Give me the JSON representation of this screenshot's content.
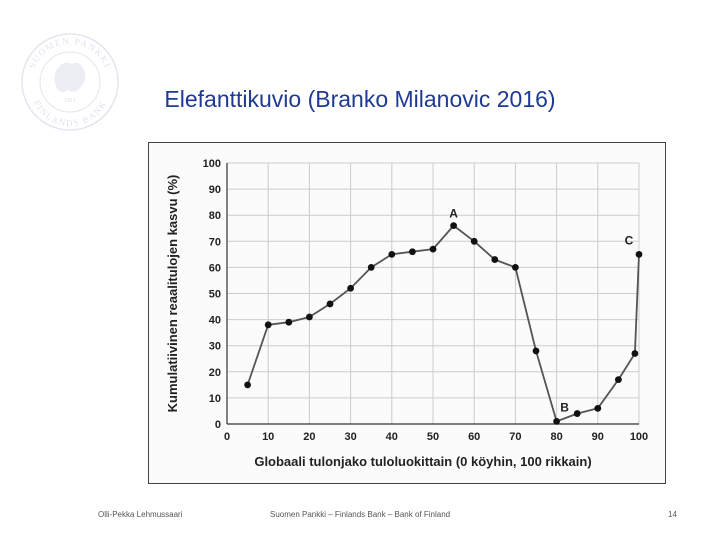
{
  "logo": {
    "icon": "suomen-pankki-seal-icon",
    "arc_top": "SUOMEN PANKKI",
    "arc_bottom": "FINLANDS BANK",
    "center_text": "1811"
  },
  "slide": {
    "title": "Elefanttikuvio (Branko Milanovic 2016)"
  },
  "footer": {
    "author": "Olli-Pekka Lehmussaari",
    "organization": "Suomen Pankki – Finlands Bank – Bank of Finland",
    "page": "14"
  },
  "chart_data": {
    "type": "line",
    "xlabel": "Globaali tulonjako tuloluokittain (0 köyhin, 100 rikkain)",
    "ylabel": "Kumulatiivinen reaalitulojen kasvu (%)",
    "xlim": [
      0,
      100
    ],
    "ylim": [
      0,
      100
    ],
    "x_ticks": [
      0,
      10,
      20,
      30,
      40,
      50,
      60,
      70,
      80,
      90,
      100
    ],
    "y_ticks": [
      0,
      10,
      20,
      30,
      40,
      50,
      60,
      70,
      80,
      90,
      100
    ],
    "grid": true,
    "series": [
      {
        "x": [
          5,
          10,
          15,
          20,
          25,
          30,
          35,
          40,
          45,
          50,
          55,
          60,
          65,
          70,
          75,
          80,
          85,
          90,
          95,
          99,
          100
        ],
        "y": [
          15,
          38,
          39,
          41,
          46,
          52,
          60,
          65,
          66,
          67,
          76,
          70,
          63,
          60,
          28,
          1,
          4,
          6,
          17,
          27,
          65
        ],
        "color": "#555555",
        "marker_color": "#111111"
      }
    ],
    "annotations": [
      {
        "text": "A",
        "x": 55,
        "y": 76
      },
      {
        "text": "B",
        "x": 80,
        "y": 1
      },
      {
        "text": "C",
        "x": 100,
        "y": 65
      }
    ]
  }
}
